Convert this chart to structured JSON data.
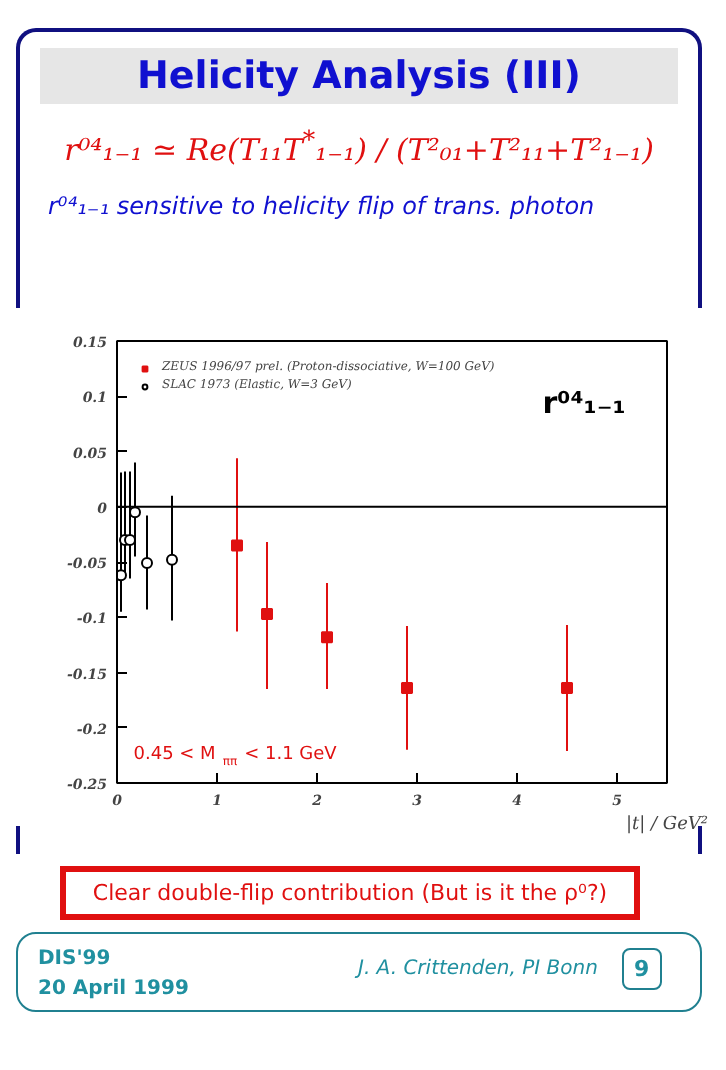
{
  "chart_data": {
    "type": "scatter",
    "title": "Helicity Analysis (III)",
    "subtitle": "r⁰⁴₁₋₁ sensitive to helicity flip of trans. photon",
    "xlabel": "|t| / GeV²",
    "annotations": [
      "r⁰⁴₁₋₁ ≃ Re(T₁₁T$^{*}$₁₋₁) / (T²₀₁+T²₁₁+T²₁₋₁)",
      "r⁰⁴₁₋₁",
      "0.45 < M$_{ππ}$ < 1.1 GeV",
      "Clear double-flip contribution (But is it the ρ⁰?)",
      "DIS'99",
      "20 April 1999",
      "J. A. Crittenden, PI Bonn",
      "9"
    ],
    "series": [
      {
        "name": "ZEUS 1996/97 prel. (Proton-dissociative, W=100 GeV)",
        "color": "#e01010",
        "marker": "square",
        "x": [
          1.2,
          1.5,
          2.1,
          2.9,
          4.5
        ],
        "values": [
          -0.035,
          -0.097,
          -0.118,
          -0.164,
          -0.164
        ],
        "errors": [
          [
            -0.113,
            0.044
          ],
          [
            -0.165,
            -0.032
          ],
          [
            -0.165,
            -0.069
          ],
          [
            -0.22,
            -0.108
          ],
          [
            -0.221,
            -0.107
          ]
        ]
      },
      {
        "name": "SLAC 1973 (Elastic, W=3 GeV)",
        "color": "#000000",
        "marker": "circle",
        "x": [
          0.04,
          0.08,
          0.13,
          0.18,
          0.3,
          0.55
        ],
        "values": [
          -0.062,
          -0.03,
          -0.03,
          -0.005,
          -0.051,
          -0.048
        ],
        "errors": [
          [
            -0.095,
            0.031
          ],
          [
            -0.06,
            0.032
          ],
          [
            -0.065,
            0.032
          ],
          [
            -0.045,
            0.04
          ],
          [
            -0.093,
            -0.008
          ],
          [
            -0.103,
            0.01
          ]
        ]
      }
    ],
    "xlim": [
      0,
      5.5
    ],
    "xticks": [
      0,
      1,
      2,
      3,
      4,
      5
    ],
    "ylim": [
      -0.25,
      0.15
    ],
    "yticks": [
      -0.25,
      -0.2,
      -0.15,
      -0.1,
      -0.05,
      0,
      0.05,
      0.1,
      0.15
    ],
    "ref_lines": [
      {
        "axis": "y",
        "value": 0,
        "color": "#000000"
      }
    ],
    "legend": "top left",
    "grid": false
  }
}
